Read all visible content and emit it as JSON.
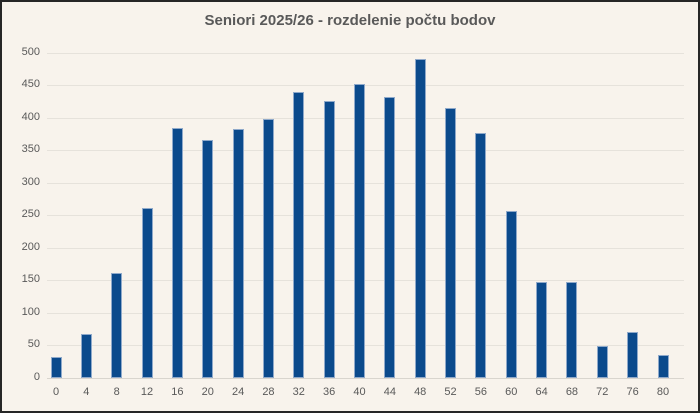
{
  "chart_data": {
    "type": "bar",
    "title": "Seniori 2025/26 - rozdelenie počtu bodov",
    "categories": [
      "0",
      "4",
      "8",
      "12",
      "16",
      "20",
      "24",
      "28",
      "32",
      "36",
      "40",
      "44",
      "48",
      "52",
      "56",
      "60",
      "64",
      "68",
      "72",
      "76",
      "80"
    ],
    "values": [
      32,
      67,
      162,
      261,
      384,
      366,
      383,
      398,
      439,
      426,
      452,
      432,
      490,
      414,
      377,
      257,
      147,
      148,
      49,
      70,
      35
    ],
    "xlabel": "",
    "ylabel": "",
    "ylim": [
      0,
      500
    ],
    "yticks": [
      0,
      50,
      100,
      150,
      200,
      250,
      300,
      350,
      400,
      450,
      500
    ],
    "grid": true,
    "legend": false,
    "bar_color": "#0b4a8c",
    "bar_edge_color": "#8fa9ca",
    "background_color": "#f8f3ec",
    "grid_color": "#e6e2db",
    "axis_line_color": "#d9d5ce",
    "text_color": "#595959",
    "frame_border_color": "#262626"
  }
}
